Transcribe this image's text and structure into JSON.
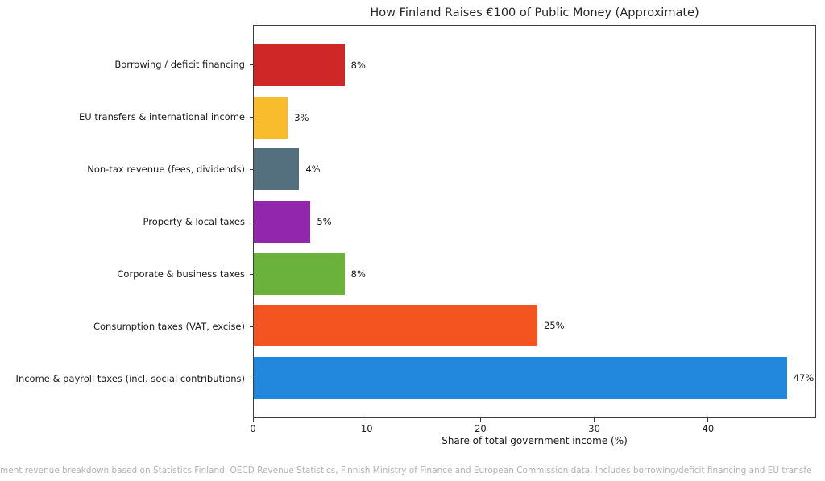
{
  "title": "How Finland Raises €100 of Public Money (Approximate)",
  "x_axis_label": "Share of total government income (%)",
  "footnote": "ment revenue breakdown based on Statistics Finland, OECD Revenue Statistics, Finnish Ministry of Finance and European Commission data. Includes borrowing/deficit financing and EU transfe",
  "chart_data": {
    "type": "bar",
    "orientation": "horizontal",
    "title": "How Finland Raises €100 of Public Money (Approximate)",
    "xlabel": "Share of total government income (%)",
    "ylabel": "",
    "categories": [
      "Borrowing / deficit financing",
      "EU transfers & international income",
      "Non-tax revenue (fees, dividends)",
      "Property & local taxes",
      "Corporate & business taxes",
      "Consumption taxes (VAT, excise)",
      "Income & payroll taxes (incl. social contributions)"
    ],
    "values": [
      8,
      3,
      4,
      5,
      8,
      25,
      47
    ],
    "value_labels": [
      "8%",
      "3%",
      "4%",
      "5%",
      "8%",
      "25%",
      "47%"
    ],
    "bar_colors": [
      "#cf2727",
      "#f9bc2c",
      "#54707f",
      "#9227ad",
      "#6ab23c",
      "#f35420",
      "#2288dd"
    ],
    "xlim": [
      0,
      49.5
    ],
    "xticks": [
      0,
      10,
      20,
      30,
      40
    ],
    "grid": false,
    "legend": "none"
  }
}
